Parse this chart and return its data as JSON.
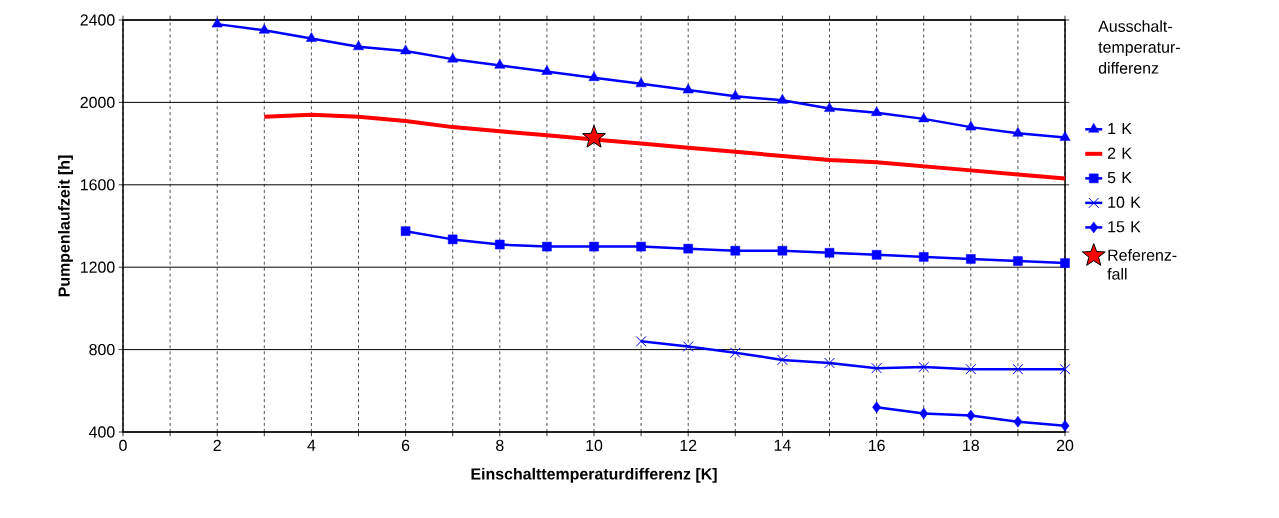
{
  "chart_data": {
    "type": "line",
    "xlabel": "Einschalttemperaturdifferenz [K]",
    "ylabel": "Pumpenlaufzeit [h]",
    "legend_title": "Ausschalt-temperatur-differenz",
    "xlim": [
      0,
      20
    ],
    "ylim": [
      400,
      2400
    ],
    "xticks": [
      0,
      {
        "value": 1,
        "label": null
      },
      2,
      {
        "value": 3,
        "label": null
      },
      4,
      {
        "value": 5,
        "label": null
      },
      6,
      {
        "value": 7,
        "label": null
      },
      8,
      {
        "value": 9,
        "label": null
      },
      10,
      {
        "value": 11,
        "label": null
      },
      12,
      {
        "value": 13,
        "label": null
      },
      14,
      {
        "value": 15,
        "label": null
      },
      16,
      {
        "value": 17,
        "label": null
      },
      18,
      {
        "value": 19,
        "label": null
      },
      20
    ],
    "yticks": [
      400,
      800,
      1200,
      1600,
      2000,
      2400
    ],
    "grid": true,
    "legend": "right",
    "series": [
      {
        "name": "1 K",
        "color": "#0000ff",
        "marker": "triangle",
        "x": [
          2,
          3,
          4,
          5,
          6,
          7,
          8,
          9,
          10,
          11,
          12,
          13,
          14,
          15,
          16,
          17,
          18,
          19,
          20
        ],
        "values": [
          2380,
          2350,
          2310,
          2270,
          2250,
          2210,
          2180,
          2150,
          2120,
          2090,
          2060,
          2030,
          2010,
          1970,
          1950,
          1920,
          1880,
          1850,
          1830
        ]
      },
      {
        "name": "2 K",
        "color": "#ff0000",
        "marker": "none",
        "x": [
          3,
          4,
          5,
          6,
          7,
          8,
          9,
          10,
          11,
          12,
          13,
          14,
          15,
          16,
          17,
          18,
          19,
          20
        ],
        "values": [
          1930,
          1940,
          1930,
          1910,
          1880,
          1860,
          1840,
          1820,
          1800,
          1780,
          1760,
          1740,
          1720,
          1710,
          1690,
          1670,
          1650,
          1630
        ]
      },
      {
        "name": "5 K",
        "color": "#0000ff",
        "marker": "square",
        "x": [
          6,
          7,
          8,
          9,
          10,
          11,
          12,
          13,
          14,
          15,
          16,
          17,
          18,
          19,
          20
        ],
        "values": [
          1375,
          1335,
          1310,
          1300,
          1300,
          1300,
          1290,
          1280,
          1280,
          1270,
          1260,
          1250,
          1240,
          1230,
          1220
        ]
      },
      {
        "name": "10 K",
        "color": "#0000ff",
        "marker": "cross",
        "x": [
          11,
          12,
          13,
          14,
          15,
          16,
          17,
          18,
          19,
          20
        ],
        "values": [
          840,
          815,
          785,
          750,
          735,
          710,
          715,
          705,
          705,
          705
        ]
      },
      {
        "name": "15 K",
        "color": "#0000ff",
        "marker": "diamond",
        "x": [
          16,
          17,
          18,
          19,
          20
        ],
        "values": [
          520,
          490,
          480,
          450,
          430
        ]
      },
      {
        "name": "Referenz-fall",
        "type": "scatter",
        "color": "#ff0000",
        "marker": "star",
        "x": [
          10
        ],
        "values": [
          1830
        ]
      }
    ]
  }
}
